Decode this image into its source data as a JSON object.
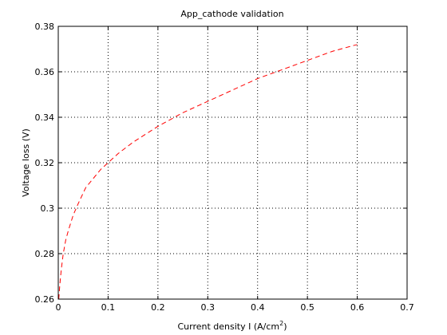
{
  "chart_data": {
    "type": "line",
    "title": "App_cathode validation",
    "xlabel_main": "Current density I (A/cm",
    "xlabel_sup": "2",
    "xlabel_tail": ")",
    "ylabel": "Voltage loss (V)",
    "xlim": [
      0,
      0.7
    ],
    "ylim": [
      0.26,
      0.38
    ],
    "x_ticks": [
      0,
      0.1,
      0.2,
      0.3,
      0.4,
      0.5,
      0.6,
      0.7
    ],
    "x_tick_labels": [
      "0",
      "0.1",
      "0.2",
      "0.3",
      "0.4",
      "0.5",
      "0.6",
      "0.7"
    ],
    "y_ticks": [
      0.26,
      0.28,
      0.3,
      0.32,
      0.34,
      0.36,
      0.38
    ],
    "y_tick_labels": [
      "0.26",
      "0.28",
      "0.3",
      "0.32",
      "0.34",
      "0.36",
      "0.38"
    ],
    "grid": true,
    "series": [
      {
        "color": "#ff0000",
        "style": "dashed",
        "x": [
          0.001,
          0.003,
          0.006,
          0.01,
          0.015,
          0.02,
          0.03,
          0.04,
          0.055,
          0.07,
          0.085,
          0.1,
          0.12,
          0.15,
          0.2,
          0.25,
          0.3,
          0.35,
          0.4,
          0.45,
          0.5,
          0.55,
          0.6
        ],
        "y": [
          0.26,
          0.266,
          0.273,
          0.28,
          0.286,
          0.29,
          0.297,
          0.302,
          0.309,
          0.313,
          0.317,
          0.32,
          0.324,
          0.329,
          0.336,
          0.342,
          0.347,
          0.352,
          0.357,
          0.361,
          0.365,
          0.369,
          0.372
        ]
      }
    ]
  }
}
